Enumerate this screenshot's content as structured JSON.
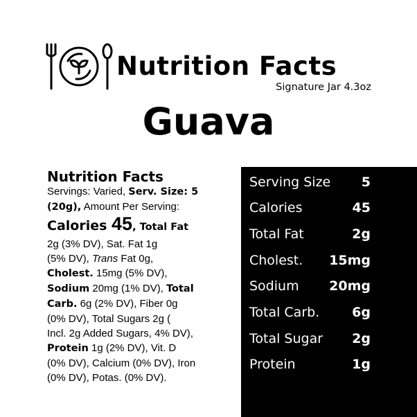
{
  "header": {
    "title": "Nutrition Facts",
    "subtitle": "Signature Jar 4.3oz",
    "product": "Guava",
    "logo_icon": "plate-fork-spoon-leaf-icon"
  },
  "label": {
    "heading": "Nutrition Facts",
    "lines": [
      [
        "Servings: Varied, ",
        "Serv. Size: 5",
        ""
      ],
      [
        "(20g),",
        " Amount Per Serving:"
      ],
      [
        "Calories ",
        "45",
        ", Total Fat"
      ],
      [
        "2g (3% DV), Sat. Fat 1g"
      ],
      [
        "(5% DV), ",
        "Trans",
        " Fat 0g,"
      ],
      [
        "Cholest.",
        " 15mg (5% DV),"
      ],
      [
        "Sodium",
        " 20mg (1% DV), ",
        "Total"
      ],
      [
        "Carb.",
        " 6g (2% DV), Fiber 0g"
      ],
      [
        "(0% DV), Total Sugars 2g ("
      ],
      [
        "Incl. 2g  Added Sugars, 4% DV),"
      ],
      [
        "Protein",
        " 1g (2% DV), Vit. D"
      ],
      [
        "(0% DV), Calcium (0% DV), Iron"
      ],
      [
        "(0% DV), Potas. (0% DV)."
      ]
    ]
  },
  "panel": {
    "rows": [
      {
        "label": "Serving Size",
        "value": "5"
      },
      {
        "label": "Calories",
        "value": "45"
      },
      {
        "label": "Total Fat",
        "value": "2g"
      },
      {
        "label": "Cholest.",
        "value": "15mg"
      },
      {
        "label": "Sodium",
        "value": "20mg"
      },
      {
        "label": "Total Carb.",
        "value": "6g"
      },
      {
        "label": "Total Sugar",
        "value": "2g"
      },
      {
        "label": "Protein",
        "value": "1g"
      }
    ]
  }
}
